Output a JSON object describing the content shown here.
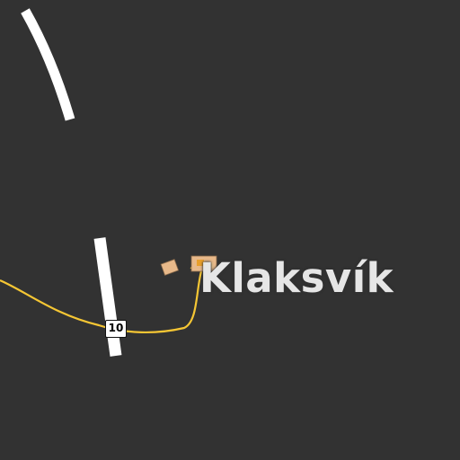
{
  "map": {
    "background_color": "#323232",
    "road_color": "#f5c634",
    "boundary_color": "#ffffff",
    "building_color": "#e8b98a",
    "place": {
      "name": "Klaksvík"
    },
    "road": {
      "ref": "10"
    }
  }
}
